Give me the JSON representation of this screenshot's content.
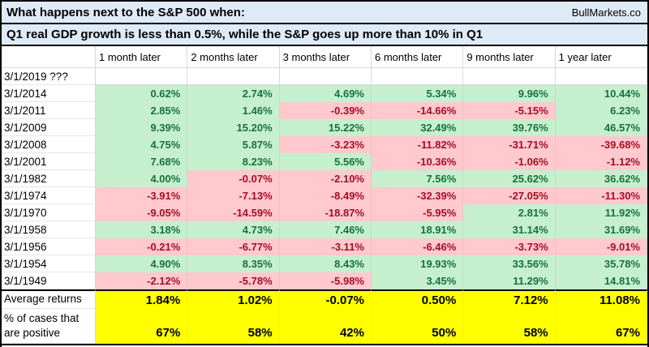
{
  "title": {
    "line1": "What happens next to the S&P 500 when:",
    "brand": "BullMarkets.co",
    "line2": "Q1 real GDP growth is less than 0.5%, while the S&P goes up more than 10% in Q1"
  },
  "colors": {
    "title_bg": "#DEEAF6",
    "positive_bg": "#C6EFCE",
    "negative_bg": "#FFC9CE",
    "positive_text": "#17713C",
    "negative_text": "#A50D21",
    "summary_bg": "#FFFF00",
    "border": "#000000"
  },
  "table": {
    "columns": [
      "1 month later",
      "2 months later",
      "3 months later",
      "6 months later",
      "9 months later",
      "1 year later"
    ],
    "rows": [
      {
        "label": "3/1/2019 ???",
        "values": [
          "",
          "",
          "",
          "",
          "",
          ""
        ]
      },
      {
        "label": "3/1/2014",
        "values": [
          "0.62%",
          "2.74%",
          "4.69%",
          "5.34%",
          "9.96%",
          "10.44%"
        ]
      },
      {
        "label": "3/1/2011",
        "values": [
          "2.85%",
          "1.46%",
          "-0.39%",
          "-14.66%",
          "-5.15%",
          "6.23%"
        ]
      },
      {
        "label": "3/1/2009",
        "values": [
          "9.39%",
          "15.20%",
          "15.22%",
          "32.49%",
          "39.76%",
          "46.57%"
        ]
      },
      {
        "label": "3/1/2008",
        "values": [
          "4.75%",
          "5.87%",
          "-3.23%",
          "-11.82%",
          "-31.71%",
          "-39.68%"
        ]
      },
      {
        "label": "3/1/2001",
        "values": [
          "7.68%",
          "8.23%",
          "5.56%",
          "-10.36%",
          "-1.06%",
          "-1.12%"
        ]
      },
      {
        "label": "3/1/1982",
        "values": [
          "4.00%",
          "-0.07%",
          "-2.10%",
          "7.56%",
          "25.62%",
          "36.62%"
        ]
      },
      {
        "label": "3/1/1974",
        "values": [
          "-3.91%",
          "-7.13%",
          "-8.49%",
          "-32.39%",
          "-27.05%",
          "-11.30%"
        ]
      },
      {
        "label": "3/1/1970",
        "values": [
          "-9.05%",
          "-14.59%",
          "-18.87%",
          "-5.95%",
          "2.81%",
          "11.92%"
        ]
      },
      {
        "label": "3/1/1958",
        "values": [
          "3.18%",
          "4.73%",
          "7.46%",
          "18.91%",
          "31.14%",
          "31.69%"
        ]
      },
      {
        "label": "3/1/1956",
        "values": [
          "-0.21%",
          "-6.77%",
          "-3.11%",
          "-6.46%",
          "-3.73%",
          "-9.01%"
        ]
      },
      {
        "label": "3/1/1954",
        "values": [
          "4.90%",
          "8.35%",
          "8.43%",
          "19.93%",
          "33.56%",
          "35.78%"
        ]
      },
      {
        "label": "3/1/1949",
        "values": [
          "-2.12%",
          "-5.78%",
          "-5.98%",
          "3.45%",
          "11.29%",
          "14.81%"
        ]
      }
    ],
    "summary": [
      {
        "label": "Average returns",
        "values": [
          "1.84%",
          "1.02%",
          "-0.07%",
          "0.50%",
          "7.12%",
          "11.08%"
        ]
      },
      {
        "label": "% of cases that\nare positive",
        "values": [
          "67%",
          "58%",
          "42%",
          "50%",
          "58%",
          "67%"
        ]
      }
    ]
  },
  "chart_data": {
    "type": "table",
    "title": "What happens next to the S&P 500 when: Q1 real GDP growth is less than 0.5%, while the S&P goes up more than 10% in Q1",
    "source_label": "BullMarkets.co",
    "units": "percent return of S&P 500",
    "columns": [
      "1 month later",
      "2 months later",
      "3 months later",
      "6 months later",
      "9 months later",
      "1 year later"
    ],
    "rows": [
      {
        "date": "3/1/2019 ???",
        "values": [
          null,
          null,
          null,
          null,
          null,
          null
        ]
      },
      {
        "date": "3/1/2014",
        "values": [
          0.62,
          2.74,
          4.69,
          5.34,
          9.96,
          10.44
        ]
      },
      {
        "date": "3/1/2011",
        "values": [
          2.85,
          1.46,
          -0.39,
          -14.66,
          -5.15,
          6.23
        ]
      },
      {
        "date": "3/1/2009",
        "values": [
          9.39,
          15.2,
          15.22,
          32.49,
          39.76,
          46.57
        ]
      },
      {
        "date": "3/1/2008",
        "values": [
          4.75,
          5.87,
          -3.23,
          -11.82,
          -31.71,
          -39.68
        ]
      },
      {
        "date": "3/1/2001",
        "values": [
          7.68,
          8.23,
          5.56,
          -10.36,
          -1.06,
          -1.12
        ]
      },
      {
        "date": "3/1/1982",
        "values": [
          4.0,
          -0.07,
          -2.1,
          7.56,
          25.62,
          36.62
        ]
      },
      {
        "date": "3/1/1974",
        "values": [
          -3.91,
          -7.13,
          -8.49,
          -32.39,
          -27.05,
          -11.3
        ]
      },
      {
        "date": "3/1/1970",
        "values": [
          -9.05,
          -14.59,
          -18.87,
          -5.95,
          2.81,
          11.92
        ]
      },
      {
        "date": "3/1/1958",
        "values": [
          3.18,
          4.73,
          7.46,
          18.91,
          31.14,
          31.69
        ]
      },
      {
        "date": "3/1/1956",
        "values": [
          -0.21,
          -6.77,
          -3.11,
          -6.46,
          -3.73,
          -9.01
        ]
      },
      {
        "date": "3/1/1954",
        "values": [
          4.9,
          8.35,
          8.43,
          19.93,
          33.56,
          35.78
        ]
      },
      {
        "date": "3/1/1949",
        "values": [
          -2.12,
          -5.78,
          -5.98,
          3.45,
          11.29,
          14.81
        ]
      }
    ],
    "average_returns": [
      1.84,
      1.02,
      -0.07,
      0.5,
      7.12,
      11.08
    ],
    "pct_cases_positive": [
      67,
      58,
      42,
      50,
      58,
      67
    ],
    "color_coding": "green fill = positive return, pink fill = negative return, yellow fill = summary rows"
  }
}
